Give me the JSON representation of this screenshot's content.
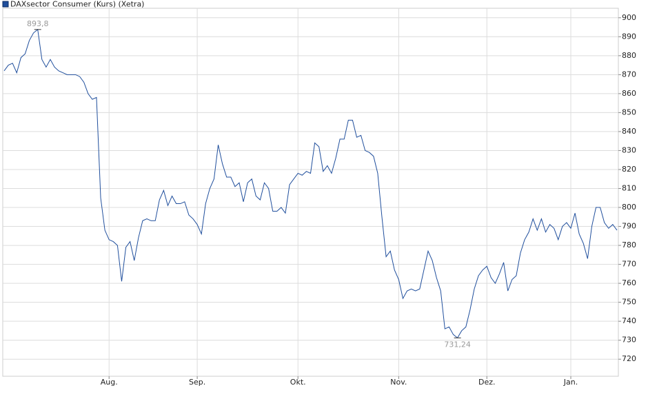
{
  "chart_data": {
    "type": "line",
    "categories": [
      null,
      null,
      null,
      null,
      null,
      null,
      null,
      null,
      null,
      null,
      null,
      null,
      null,
      null,
      null,
      null,
      null,
      null,
      null,
      null,
      null,
      null,
      null,
      null,
      null,
      "Aug.",
      null,
      null,
      null,
      null,
      null,
      null,
      null,
      null,
      null,
      null,
      null,
      null,
      null,
      null,
      null,
      null,
      null,
      null,
      null,
      null,
      "Sep.",
      null,
      null,
      null,
      null,
      null,
      null,
      null,
      null,
      null,
      null,
      null,
      null,
      null,
      null,
      null,
      null,
      null,
      null,
      null,
      null,
      null,
      null,
      null,
      "Okt.",
      null,
      null,
      null,
      null,
      null,
      null,
      null,
      null,
      null,
      null,
      null,
      null,
      null,
      null,
      null,
      null,
      null,
      null,
      null,
      null,
      null,
      null,
      null,
      "Nov.",
      null,
      null,
      null,
      null,
      null,
      null,
      null,
      null,
      null,
      null,
      null,
      null,
      null,
      null,
      null,
      null,
      null,
      null,
      null,
      null,
      "Dez.",
      null,
      null,
      null,
      null,
      null,
      null,
      null,
      null,
      null,
      null,
      null,
      null,
      null,
      null,
      null,
      null,
      null,
      null,
      null,
      "Jan.",
      null,
      null,
      null,
      null,
      null,
      null,
      null,
      null,
      null,
      null,
      null
    ],
    "series": [
      {
        "name": "DAXsector Consumer (Kurs) (Xetra)",
        "color": "#1f4e9c",
        "values": [
          872,
          875,
          876,
          871,
          879,
          881,
          888,
          892,
          893.8,
          878,
          874,
          878,
          874,
          872,
          871,
          870,
          870,
          870,
          869,
          866,
          860,
          857,
          858,
          805,
          788,
          783,
          782,
          780,
          761,
          779,
          782,
          772,
          784,
          793,
          794,
          793,
          793,
          804,
          809,
          801,
          806,
          802,
          802,
          803,
          796,
          794,
          791,
          786,
          802,
          810,
          815,
          833,
          823,
          816,
          816,
          811,
          813,
          803,
          813,
          815,
          806,
          804,
          813,
          810,
          798,
          798,
          800,
          797,
          812,
          815,
          818,
          817,
          819,
          818,
          834,
          832,
          819,
          822,
          818,
          826,
          836,
          836,
          846,
          846,
          837,
          838,
          830,
          829,
          827,
          818,
          795,
          774,
          777,
          767,
          762,
          752,
          756,
          757,
          756,
          757,
          767,
          777,
          772,
          763,
          756,
          736,
          737,
          733,
          731.24,
          735,
          737,
          746,
          757,
          764,
          767,
          769,
          763,
          760,
          765,
          771,
          756,
          762,
          764,
          776,
          783,
          787,
          794,
          788,
          794,
          787,
          791,
          789,
          783,
          790,
          792,
          789,
          797,
          786,
          781,
          773,
          790,
          800,
          800,
          792,
          789,
          791,
          788
        ]
      }
    ],
    "max_label": "893,8",
    "min_label": "731,24",
    "ylim": [
      711,
      905
    ],
    "yticks": [
      720,
      730,
      740,
      750,
      760,
      770,
      780,
      790,
      800,
      810,
      820,
      830,
      840,
      850,
      860,
      870,
      880,
      890,
      900
    ],
    "grid": true
  }
}
